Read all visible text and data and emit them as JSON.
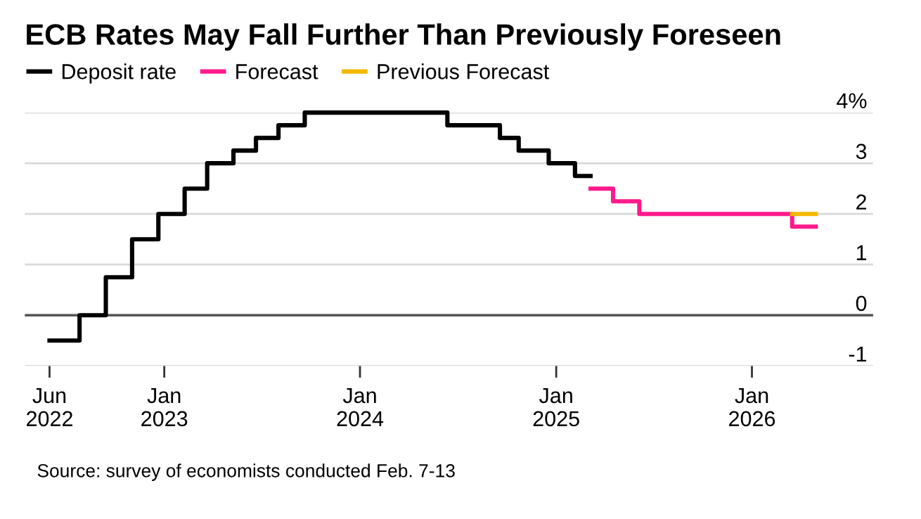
{
  "chart_data": {
    "type": "step",
    "title": "ECB Rates May Fall Further Than Previously Foreseen",
    "series": [
      {
        "name": "Deposit rate",
        "color": "#000000",
        "x": [
          "2022-06-01",
          "2022-07-27",
          "2022-09-14",
          "2022-11-02",
          "2022-12-21",
          "2023-02-08",
          "2023-03-22",
          "2023-05-10",
          "2023-06-21",
          "2023-08-02",
          "2023-09-20",
          "2024-06-12",
          "2024-09-18",
          "2024-10-23",
          "2024-12-18",
          "2025-02-05",
          "2025-03-06"
        ],
        "values": [
          -0.5,
          0,
          0.75,
          1.5,
          2,
          2.5,
          3,
          3.25,
          3.5,
          3.75,
          4,
          3.75,
          3.5,
          3.25,
          3,
          2.75,
          2.75
        ]
      },
      {
        "name": "Forecast",
        "color": "#ff1a8c",
        "x": [
          "2025-03-06",
          "2025-04-17",
          "2025-06-05",
          "2026-03-17",
          "2026-04-30"
        ],
        "values": [
          2.5,
          2.25,
          2,
          1.75,
          1.75
        ]
      },
      {
        "name": "Previous Forecast",
        "color": "#f5b800",
        "x": [
          "2026-03-17",
          "2026-04-30"
        ],
        "values": [
          2,
          2
        ]
      }
    ],
    "xlim": [
      "2022-04-16",
      "2026-08-15"
    ],
    "xticks": [
      {
        "value": "2022-06-01",
        "label": "Jun\n2022"
      },
      {
        "value": "2023-01-01",
        "label": "Jan\n2023"
      },
      {
        "value": "2024-01-01",
        "label": "Jan\n2024"
      },
      {
        "value": "2025-01-01",
        "label": "Jan\n2025"
      },
      {
        "value": "2026-01-01",
        "label": "Jan\n2026"
      }
    ],
    "ylim": [
      -1,
      4
    ],
    "yticks": [
      -1,
      0,
      1,
      2,
      3,
      {
        "value": 4,
        "label": "4%"
      }
    ],
    "ref_lines": [
      {
        "axis": "y",
        "value": 0,
        "color": "#555555"
      }
    ],
    "grid": "y",
    "legend": "top left",
    "annotations": [
      "Source: survey of economists conducted Feb. 7-13"
    ]
  }
}
